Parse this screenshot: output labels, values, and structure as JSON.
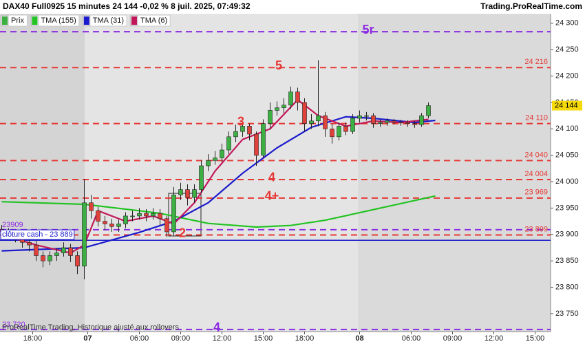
{
  "chart_data": {
    "type": "candlestick",
    "title": "DAX40 Full0925 15 minutes 24 144 -0,02 % 8 juil. 2025, 07:49:32",
    "source": "Trading.ProRealTime.com",
    "footnote": "ProRealTime Trading, Historique ajusté aux rollovers",
    "ylim": [
      23716,
      24318
    ],
    "yticks": [
      {
        "value": 23750,
        "label": "23 750"
      },
      {
        "value": 23800,
        "label": "23 800"
      },
      {
        "value": 23850,
        "label": "23 850"
      },
      {
        "value": 23900,
        "label": "23 900"
      },
      {
        "value": 23950,
        "label": "23 950"
      },
      {
        "value": 24000,
        "label": "24 000"
      },
      {
        "value": 24050,
        "label": "24 050"
      },
      {
        "value": 24100,
        "label": "24 100"
      },
      {
        "value": 24150,
        "label": "24 150"
      },
      {
        "value": 24200,
        "label": "24 200"
      },
      {
        "value": 24250,
        "label": "24 250"
      },
      {
        "value": 24300,
        "label": "24 300"
      }
    ],
    "xlim": [
      -0.5,
      159.5
    ],
    "xticks": [
      {
        "value": 9,
        "label": "18:00"
      },
      {
        "value": 25,
        "label": "07"
      },
      {
        "value": 40,
        "label": "06:00"
      },
      {
        "value": 52,
        "label": "09:00"
      },
      {
        "value": 64,
        "label": "12:00"
      },
      {
        "value": 76,
        "label": "15:00"
      },
      {
        "value": 88,
        "label": "18:00"
      },
      {
        "value": 104,
        "label": "08"
      },
      {
        "value": 119,
        "label": "06:00"
      },
      {
        "value": 131,
        "label": "09:00"
      },
      {
        "value": 143,
        "label": "12:00"
      },
      {
        "value": 155,
        "label": "15:00"
      }
    ],
    "price": {
      "name": "Prix",
      "up_color": "#3cb043",
      "down_color": "#e0413a",
      "x": [
        0,
        2,
        4,
        6,
        8,
        10,
        12,
        14,
        16,
        18,
        20,
        22,
        24,
        26,
        28,
        30,
        32,
        34,
        36,
        38,
        40,
        42,
        44,
        46,
        48,
        50,
        52,
        54,
        56,
        58,
        60,
        62,
        64,
        66,
        68,
        70,
        72,
        74,
        76,
        78,
        80,
        82,
        84,
        86,
        88,
        90,
        92,
        94,
        96,
        98,
        100,
        102,
        104,
        106,
        108,
        110,
        112,
        114,
        116,
        118,
        120,
        122,
        124
      ],
      "open": [
        23910,
        23905,
        23900,
        23895,
        23885,
        23880,
        23860,
        23850,
        23860,
        23865,
        23875,
        23860,
        23840,
        23960,
        23945,
        23925,
        23920,
        23915,
        23920,
        23935,
        23935,
        23940,
        23935,
        23940,
        23930,
        23905,
        23975,
        23985,
        23970,
        23985,
        24030,
        24040,
        24045,
        24060,
        24085,
        24095,
        24105,
        24090,
        24050,
        24110,
        24135,
        24140,
        24145,
        24170,
        24150,
        24110,
        24115,
        24125,
        24100,
        24085,
        24105,
        24095,
        24120,
        24125,
        24125,
        24110,
        24112,
        24115,
        24113,
        24112,
        24110,
        24108,
        24125
      ],
      "high": [
        23918,
        23912,
        23908,
        23902,
        23892,
        23888,
        23868,
        23868,
        23874,
        23885,
        23882,
        23868,
        24005,
        23975,
        23952,
        23935,
        23930,
        23928,
        23942,
        23945,
        23950,
        23948,
        23950,
        23948,
        23935,
        23990,
        23998,
        23995,
        23995,
        24040,
        24052,
        24058,
        24072,
        24095,
        24108,
        24112,
        24110,
        24095,
        24118,
        24150,
        24152,
        24158,
        24180,
        24178,
        24158,
        24128,
        24230,
        24132,
        24110,
        24112,
        24112,
        24128,
        24135,
        24132,
        24130,
        24118,
        24120,
        24119,
        24117,
        24116,
        24115,
        24130,
        24150
      ],
      "low": [
        23898,
        23892,
        23885,
        23875,
        23868,
        23850,
        23838,
        23842,
        23850,
        23858,
        23848,
        23825,
        23815,
        23930,
        23915,
        23908,
        23905,
        23905,
        23912,
        23925,
        23928,
        23925,
        23928,
        23918,
        23895,
        23898,
        23965,
        23955,
        23960,
        23978,
        24020,
        24032,
        24038,
        24052,
        24075,
        24085,
        24078,
        24030,
        24045,
        24100,
        24125,
        24130,
        24138,
        24135,
        24095,
        24100,
        24105,
        24085,
        24072,
        24078,
        24088,
        24090,
        24112,
        24116,
        24102,
        24104,
        24106,
        24108,
        24106,
        24104,
        24102,
        24104,
        24120
      ],
      "close": [
        23905,
        23900,
        23895,
        23885,
        23880,
        23860,
        23850,
        23860,
        23865,
        23875,
        23860,
        23840,
        23960,
        23945,
        23925,
        23920,
        23915,
        23920,
        23935,
        23935,
        23940,
        23935,
        23940,
        23930,
        23905,
        23975,
        23985,
        23970,
        23985,
        24030,
        24040,
        24045,
        24060,
        24085,
        24095,
        24105,
        24090,
        24050,
        24110,
        24135,
        24140,
        24145,
        24170,
        24150,
        24110,
        24115,
        24125,
        24100,
        24085,
        24105,
        24095,
        24120,
        24125,
        24125,
        24110,
        24112,
        24115,
        24113,
        24112,
        24110,
        24108,
        24125,
        24144
      ]
    },
    "series": [
      {
        "name": "TMA (155)",
        "color": "#22c322",
        "x": [
          0,
          24,
          40,
          46,
          60,
          74,
          84,
          94,
          108,
          126
        ],
        "values": [
          23962,
          23957,
          23945,
          23940,
          23921,
          23914,
          23917,
          23927,
          23947,
          23973
        ]
      },
      {
        "name": "TMA (31)",
        "color": "#1a1acc",
        "x": [
          0,
          24,
          40,
          50,
          60,
          70,
          80,
          90,
          100,
          108,
          120,
          126
        ],
        "values": [
          23869,
          23875,
          23904,
          23925,
          23960,
          24016,
          24064,
          24103,
          24123,
          24120,
          24112,
          24116
        ]
      },
      {
        "name": "TMA (6)",
        "color": "#c2185b",
        "x": [
          0,
          10,
          20,
          24,
          28,
          36,
          44,
          50,
          56,
          62,
          70,
          78,
          86,
          92,
          100,
          108,
          116,
          124
        ],
        "values": [
          23900,
          23880,
          23865,
          23880,
          23945,
          23925,
          23935,
          23920,
          23960,
          24020,
          24080,
          24100,
          24155,
          24125,
          24105,
          24115,
          24112,
          24118
        ]
      }
    ],
    "levels": [
      {
        "value": 24284,
        "color": "#8b2be2",
        "tag": "5r"
      },
      {
        "value": 24216,
        "color": "#e53935",
        "tag": "5",
        "label": "24 216"
      },
      {
        "value": 24110,
        "color": "#e53935",
        "tag": "3",
        "label": "24 110"
      },
      {
        "value": 24040,
        "color": "#e53935",
        "label": "24 040"
      },
      {
        "value": 24004,
        "color": "#e53935",
        "tag": "4",
        "label": "24 004"
      },
      {
        "value": 23969,
        "color": "#e53935",
        "tag": "4+",
        "label": "23 969"
      },
      {
        "value": 23909,
        "color": "#8b2be2",
        "left_label": "23909"
      },
      {
        "value": 23899,
        "color": "#e53935",
        "tag": "2",
        "label": "23 899"
      },
      {
        "value": 23889,
        "color": "#1a1acc",
        "style": "solid",
        "left_label": "clôture cash -  23 889"
      },
      {
        "value": 23720,
        "color": "#8b2be2",
        "tag": "4",
        "left_label": "23 720"
      }
    ],
    "last_price": {
      "value": 24144,
      "label": "24 144",
      "color": "#f5d90a"
    }
  }
}
